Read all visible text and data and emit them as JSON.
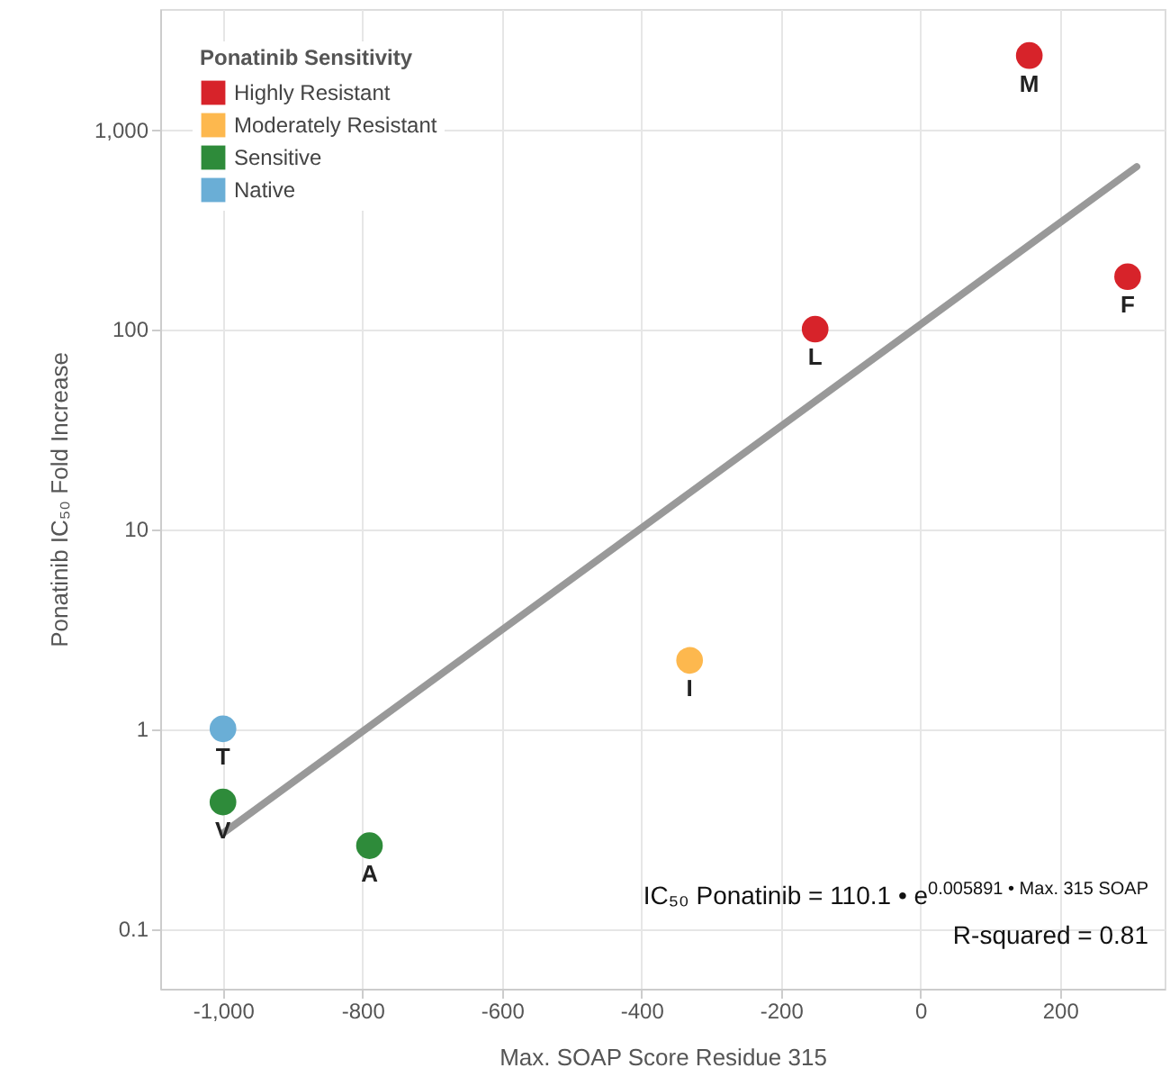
{
  "chart_data": {
    "type": "scatter",
    "xlabel": "Max. SOAP Score Residue 315",
    "ylabel": "Ponatinib IC₅₀ Fold Increase",
    "legend_title": "Ponatinib Sensitivity",
    "xlim": [
      -1090,
      350
    ],
    "ylim": [
      0.05,
      4000
    ],
    "log": "y",
    "grid": true,
    "legend": "top left",
    "xticks": [
      {
        "value": -1000,
        "label": "-1,000"
      },
      -800,
      -600,
      -400,
      -200,
      0,
      200
    ],
    "yticks": [
      0.1,
      1,
      10,
      100,
      {
        "value": 1000,
        "label": "1,000"
      }
    ],
    "series": [
      {
        "name": "Highly Resistant",
        "marker": "circle",
        "color": "#d7232a",
        "x": [
          -151,
          156,
          297
        ],
        "values": [
          100,
          2340,
          183
        ]
      },
      {
        "name": "Moderately Resistant",
        "marker": "circle",
        "color": "#fdb84e",
        "x": [
          -331
        ],
        "values": [
          2.2
        ]
      },
      {
        "name": "Sensitive",
        "marker": "circle",
        "color": "#2e8b3a",
        "x": [
          -1000,
          -790
        ],
        "values": [
          0.43,
          0.26
        ]
      },
      {
        "name": "Native",
        "marker": "circle",
        "color": "#6aaed6",
        "x": [
          -1000
        ],
        "values": [
          1
        ]
      },
      {
        "type": "line",
        "marker": "none",
        "color": "#999999",
        "x": [
          -1000,
          310
        ],
        "values": [
          0.3,
          650
        ]
      }
    ],
    "annotations": [
      {
        "text": "L",
        "x": -151,
        "y": 100
      },
      {
        "text": "M",
        "x": 156,
        "y": 2340
      },
      {
        "text": "F",
        "x": 297,
        "y": 183
      },
      {
        "text": "I",
        "x": -331,
        "y": 2.2
      },
      {
        "text": "T",
        "x": -1000,
        "y": 1
      },
      {
        "text": "V",
        "x": -1000,
        "y": 0.43
      },
      {
        "text": "A",
        "x": -790,
        "y": 0.26
      },
      "IC₅₀ Ponatinib = 110.1 • e$^{0.005891 • Max. 315 SOAP}$",
      "R-squared = 0.81"
    ]
  }
}
